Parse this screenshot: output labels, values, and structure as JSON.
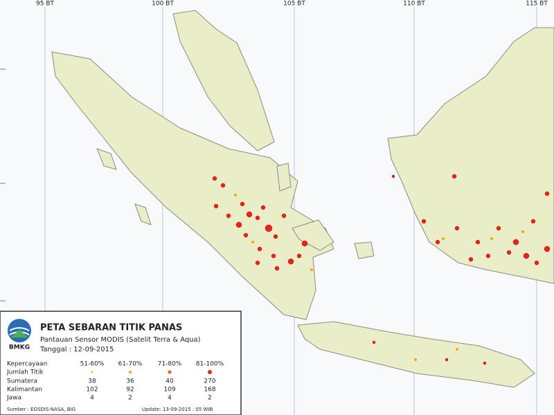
{
  "grid_labels": [
    "95 BT",
    "100 BT",
    "105 BT",
    "110 BT",
    "115 BT"
  ],
  "legend": {
    "logo": "BMKG",
    "title": "PETA SEBARAN TITIK PANAS",
    "subtitle": "Pantauan Sensor MODIS (Satelit Terra & Aqua)",
    "date": "Tanggal : 12-09-2015",
    "header": [
      "Kepercayaan",
      "51-60%",
      "61-70%",
      "71-80%",
      "81-100%"
    ],
    "count_label": "Jumlah Titik",
    "rows": [
      [
        "Sumatera",
        38,
        36,
        40,
        270
      ],
      [
        "Kalimantan",
        102,
        92,
        109,
        168
      ],
      [
        "Jawa",
        4,
        2,
        4,
        2
      ]
    ],
    "source": "Sumber : EOSDIS-NASA, BIG",
    "update": "Update: 13-09-2015 : 05 WIB"
  }
}
